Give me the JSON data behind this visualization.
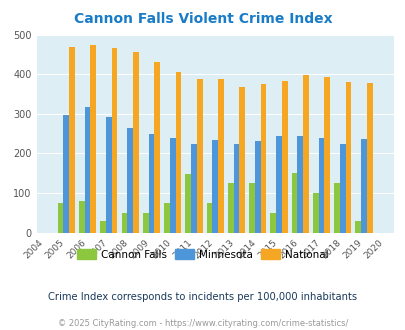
{
  "title": "Cannon Falls Violent Crime Index",
  "years": [
    2004,
    2005,
    2006,
    2007,
    2008,
    2009,
    2010,
    2011,
    2012,
    2013,
    2014,
    2015,
    2016,
    2017,
    2018,
    2019,
    2020
  ],
  "cannon_falls": [
    null,
    75,
    80,
    30,
    50,
    50,
    75,
    147,
    75,
    125,
    125,
    50,
    150,
    100,
    125,
    30,
    null
  ],
  "minnesota": [
    null,
    298,
    317,
    291,
    265,
    248,
    238,
    223,
    234,
    224,
    231,
    244,
    244,
    240,
    223,
    237,
    null
  ],
  "national": [
    null,
    469,
    473,
    467,
    455,
    431,
    405,
    388,
    387,
    367,
    376,
    383,
    397,
    394,
    381,
    379,
    null
  ],
  "cannon_falls_color": "#8dc63f",
  "minnesota_color": "#4d96d9",
  "national_color": "#f5a623",
  "plot_bg_color": "#ddeef5",
  "ylim": [
    0,
    500
  ],
  "yticks": [
    0,
    100,
    200,
    300,
    400,
    500
  ],
  "subtitle": "Crime Index corresponds to incidents per 100,000 inhabitants",
  "footer": "© 2025 CityRating.com - https://www.cityrating.com/crime-statistics/",
  "title_color": "#1a7cc7",
  "subtitle_color": "#1a3a5c",
  "footer_color": "#999999"
}
